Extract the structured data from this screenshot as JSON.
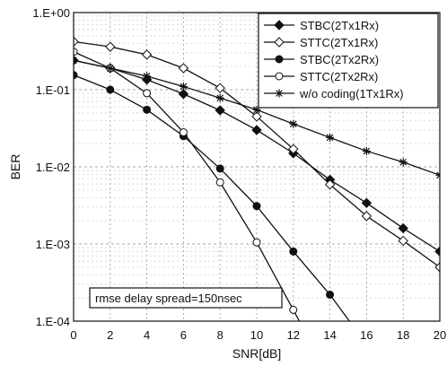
{
  "chart_data": {
    "type": "line",
    "xlabel": "SNR[dB]",
    "ylabel": "BER",
    "xlim": [
      0,
      20
    ],
    "ylim": [
      0.0001,
      1
    ],
    "y_scale": "log",
    "x_ticks": [
      0,
      2,
      4,
      6,
      8,
      10,
      12,
      14,
      16,
      18,
      20
    ],
    "y_ticks": [
      1,
      0.1,
      0.01,
      0.001,
      0.0001
    ],
    "y_tick_labels": [
      "1.E+00",
      "1.E-01",
      "1.E-02",
      "1.E-03",
      "1.E-04"
    ],
    "grid": true,
    "legend_position": "top-right",
    "annotation": "rmse delay spread=150nsec",
    "series": [
      {
        "name": "STBC(2Tx1Rx)",
        "marker": "filled-diamond",
        "x": [
          0,
          2,
          4,
          6,
          8,
          10,
          12,
          14,
          16,
          18,
          20
        ],
        "y": [
          0.24,
          0.19,
          0.135,
          0.088,
          0.054,
          0.03,
          0.015,
          0.0068,
          0.0034,
          0.0016,
          0.0008
        ]
      },
      {
        "name": "STTC(2Tx1Rx)",
        "marker": "open-diamond",
        "x": [
          0,
          2,
          4,
          6,
          8,
          10,
          12,
          14,
          16,
          18,
          20
        ],
        "y": [
          0.42,
          0.36,
          0.285,
          0.19,
          0.105,
          0.045,
          0.017,
          0.0059,
          0.0023,
          0.0011,
          0.0005
        ]
      },
      {
        "name": "STBC(2Tx2Rx)",
        "marker": "filled-circle",
        "x": [
          0,
          2,
          4,
          6,
          8,
          10,
          12,
          14,
          16
        ],
        "y": [
          0.155,
          0.1,
          0.055,
          0.025,
          0.0095,
          0.0031,
          0.0008,
          0.00022,
          5e-05
        ]
      },
      {
        "name": "STTC(2Tx2Rx)",
        "marker": "open-circle",
        "x": [
          0,
          2,
          4,
          6,
          8,
          10,
          12,
          13
        ],
        "y": [
          0.31,
          0.19,
          0.09,
          0.028,
          0.0063,
          0.00105,
          0.00014,
          5e-05
        ]
      },
      {
        "name": "w/o coding(1Tx1Rx)",
        "marker": "asterisk",
        "x": [
          0,
          2,
          4,
          6,
          8,
          10,
          12,
          14,
          16,
          18,
          20
        ],
        "y": [
          0.24,
          0.19,
          0.15,
          0.11,
          0.078,
          0.055,
          0.036,
          0.024,
          0.016,
          0.0115,
          0.0078
        ]
      }
    ]
  }
}
